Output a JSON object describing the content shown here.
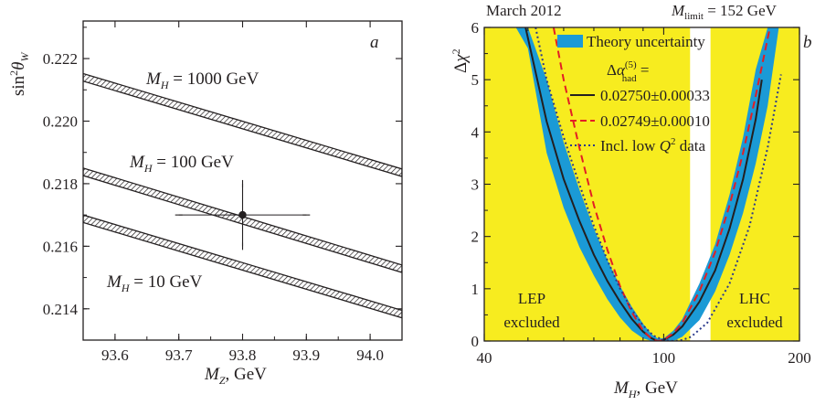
{
  "chart_data": [
    {
      "type": "line",
      "panel_label": "a",
      "xlabel": "M_Z, GeV",
      "ylabel": "sin²θ_W",
      "xlim": [
        93.55,
        94.05
      ],
      "ylim": [
        0.213,
        0.2232
      ],
      "x_ticks": [
        "93.6",
        "93.7",
        "93.8",
        "93.9",
        "94.0"
      ],
      "y_ticks": [
        "0.214",
        "0.216",
        "0.218",
        "0.220",
        "0.222"
      ],
      "series": [
        {
          "name": "M_H = 1000 GeV",
          "x": [
            93.55,
            94.05
          ],
          "y": [
            0.2214,
            0.21835
          ],
          "band_halfwidth": 0.00012
        },
        {
          "name": "M_H = 100 GeV",
          "x": [
            93.55,
            94.05
          ],
          "y": [
            0.21838,
            0.21528
          ],
          "band_halfwidth": 0.00012
        },
        {
          "name": "M_H = 10 GeV",
          "x": [
            93.55,
            94.05
          ],
          "y": [
            0.21688,
            0.21383
          ],
          "band_halfwidth": 0.00012
        }
      ],
      "curve_labels": [
        "M_H = 1000 GeV",
        "M_H = 100 GeV",
        "M_H = 10 GeV"
      ],
      "data_point": {
        "x": 93.8,
        "y": 0.217,
        "x_err": 0.1,
        "y_err": 0.001
      },
      "grid": false
    },
    {
      "type": "line",
      "panel_label": "b",
      "title_left": "March 2012",
      "title_right": "M_limit = 152 GeV",
      "xlabel": "M_H, GeV",
      "ylabel": "Δχ²",
      "xscale": "log",
      "xlim": [
        40,
        200
      ],
      "ylim": [
        0,
        6
      ],
      "x_ticks": [
        "40",
        "100",
        "200"
      ],
      "y_ticks": [
        "0",
        "1",
        "2",
        "3",
        "4",
        "5",
        "6"
      ],
      "colors": {
        "excluded": "#f7ec1f",
        "band": "#1b9ad6",
        "dashed": "#e31e24",
        "dotted": "#2b3a8c",
        "solid": "#231f20"
      },
      "excluded_regions": [
        {
          "label_line1": "LEP",
          "label_line2": "excluded",
          "x": [
            40,
            114.4
          ]
        },
        {
          "label_line1": "LHC",
          "label_line2": "excluded",
          "x": [
            127,
            200
          ]
        }
      ],
      "legend": {
        "band": "Theory uncertainty",
        "header": "Δα(5)had =",
        "solid": "0.02750±0.00033",
        "dashed": "0.02749±0.00010",
        "dotted": "Incl. low Q² data"
      },
      "series": [
        {
          "name": "0.02750±0.00033",
          "style": "solid",
          "x": [
            49.4,
            55,
            60,
            65,
            70,
            75,
            80,
            85,
            90,
            94,
            97,
            100,
            105,
            110,
            120,
            130,
            140,
            150,
            160,
            165
          ],
          "y": [
            6.0,
            4.2,
            3.1,
            2.3,
            1.65,
            1.15,
            0.75,
            0.42,
            0.18,
            0.05,
            0.0,
            0.02,
            0.12,
            0.28,
            0.75,
            1.35,
            2.15,
            3.1,
            4.25,
            5.0
          ]
        },
        {
          "name": "0.02749±0.00010",
          "style": "dashed",
          "x": [
            57,
            60,
            65,
            70,
            75,
            80,
            85,
            90,
            94,
            97,
            100,
            105,
            110,
            120,
            130,
            140,
            150,
            160,
            172
          ],
          "y": [
            6.0,
            5.0,
            3.7,
            2.6,
            1.75,
            1.05,
            0.55,
            0.2,
            0.04,
            0.0,
            0.02,
            0.15,
            0.35,
            0.95,
            1.7,
            2.6,
            3.6,
            4.7,
            6.0
          ]
        },
        {
          "name": "Incl. low Q² data",
          "style": "dotted",
          "x": [
            52,
            55,
            60,
            65,
            70,
            75,
            80,
            85,
            90,
            95,
            100,
            105,
            110,
            115,
            125,
            140,
            155,
            170,
            182
          ],
          "y": [
            6.0,
            5.0,
            3.9,
            3.0,
            2.2,
            1.55,
            1.0,
            0.6,
            0.3,
            0.1,
            0.02,
            0.0,
            0.02,
            0.08,
            0.35,
            1.1,
            2.2,
            3.7,
            5.1
          ]
        }
      ],
      "band": {
        "x": [
          40,
          47,
          50,
          55,
          60,
          65,
          70,
          75,
          80,
          85,
          90,
          94,
          97,
          100,
          105,
          110,
          120,
          130,
          140,
          150,
          160,
          170,
          180
        ],
        "lower": [
          6.0,
          6.0,
          5.6,
          3.6,
          2.55,
          1.8,
          1.25,
          0.8,
          0.45,
          0.2,
          0.05,
          0.0,
          0.0,
          0.0,
          0.0,
          0.08,
          0.4,
          0.95,
          1.65,
          2.45,
          3.4,
          4.5,
          6.0
        ],
        "upper": [
          6.0,
          6.0,
          6.0,
          5.0,
          3.8,
          2.9,
          2.15,
          1.55,
          1.05,
          0.65,
          0.33,
          0.13,
          0.05,
          0.05,
          0.2,
          0.42,
          1.1,
          1.85,
          2.8,
          3.9,
          5.2,
          6.0,
          6.0
        ]
      },
      "grid": false
    }
  ]
}
